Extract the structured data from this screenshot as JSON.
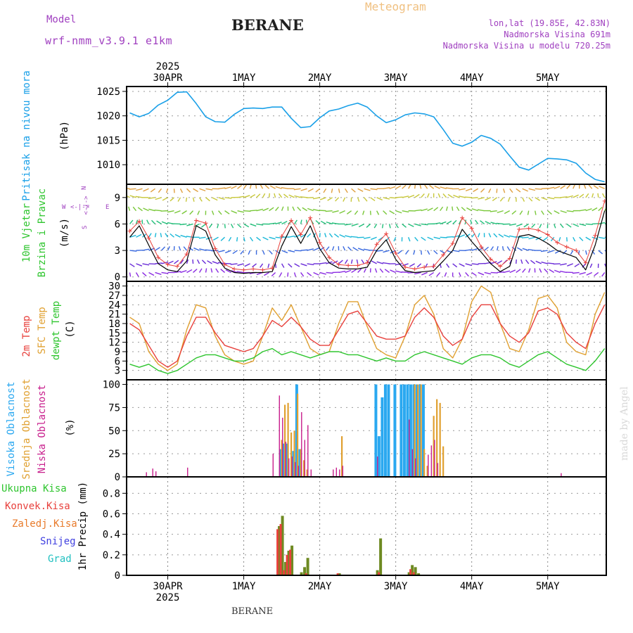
{
  "header": {
    "model_label": "Model",
    "model_name": "wrf-nmm_v3.9.1 e1km",
    "station": "BERANE",
    "title": "Meteogram",
    "lonlat": "lon,lat (19.85E, 42.83N)",
    "elevation": "Nadmorska Visina 691m",
    "model_elevation": "Nadmorska Visina u modelu 720.25m",
    "footer_station": "BERANE",
    "watermark": "made by Angel"
  },
  "colors": {
    "pressure": "#1aa0e8",
    "temp2m": "#e8403c",
    "sfc_temp": "#e0a030",
    "dewpt": "#2ec52e",
    "high_cloud": "#2aa8f0",
    "mid_cloud": "#e0a030",
    "low_cloud": "#c81e8c",
    "precip_total": "#2ec52e",
    "precip_conv": "#e8403c",
    "precip_grid": "#e87a2a",
    "snow": "#4040e0",
    "hail": "#20c0c0",
    "header_purple": "#a040c0",
    "title_orange": "#f0c080"
  },
  "time_axis": {
    "year_label": "2025",
    "day_labels": [
      "30APR",
      "1MAY",
      "2MAY",
      "3MAY",
      "4MAY",
      "5MAY"
    ]
  },
  "chart_data": [
    {
      "id": "pressure",
      "type": "line",
      "ylabel_left": "Pritisak na nivou mora",
      "unit": "(hPa)",
      "ylim": [
        1006,
        1026
      ],
      "yticks": [
        "1025",
        "1020",
        "1015",
        "1010"
      ],
      "x_unit": "hours since 30APR 00:00",
      "x": [
        -12,
        -9,
        -6,
        -3,
        0,
        3,
        6,
        9,
        12,
        15,
        18,
        21,
        24,
        27,
        30,
        33,
        36,
        39,
        42,
        45,
        48,
        51,
        54,
        57,
        60,
        63,
        66,
        69,
        72,
        75,
        78,
        81,
        84,
        87,
        90,
        93,
        96,
        99,
        102,
        105,
        108,
        111,
        114,
        117,
        120,
        123,
        126,
        129,
        132,
        135,
        138
      ],
      "values": [
        1020.6,
        1019.8,
        1020.5,
        1022.2,
        1023.2,
        1024.8,
        1024.9,
        1022.5,
        1019.8,
        1018.8,
        1018.7,
        1020.3,
        1021.5,
        1021.6,
        1021.5,
        1021.8,
        1021.8,
        1019.5,
        1017.6,
        1017.8,
        1019.6,
        1021.0,
        1021.4,
        1022.1,
        1022.6,
        1021.8,
        1020.0,
        1018.6,
        1019.2,
        1020.2,
        1020.6,
        1020.4,
        1019.8,
        1017.2,
        1014.4,
        1013.8,
        1014.6,
        1016.0,
        1015.4,
        1014.2,
        1011.8,
        1009.5,
        1008.9,
        1010.1,
        1011.3,
        1011.2,
        1011.0,
        1010.3,
        1008.3,
        1007.0,
        1006.5
      ]
    },
    {
      "id": "wind",
      "type": "line",
      "ylabel_left": "10m Vjetar",
      "ylabel_left2": "Brzina i Pravac",
      "unit": "(m/s)",
      "compass": {
        "north": "N",
        "south": "S",
        "east": "E",
        "west": "W",
        "arrows": "<-|->"
      },
      "ylim": [
        -0.5,
        10.5
      ],
      "yticks": [
        "9",
        "6",
        "3",
        "0"
      ],
      "isotach_levels_ms": [
        0.5,
        1.5,
        3,
        4.5,
        6,
        7.5,
        9,
        10
      ],
      "isotach_colors": [
        "#8a2be2",
        "#6a2cd8",
        "#3a6ae0",
        "#1ab8d8",
        "#22c07a",
        "#7ac83a",
        "#c8c83a",
        "#e0a040"
      ],
      "x_unit": "hours since 30APR 00:00",
      "x": [
        -12,
        -9,
        -6,
        -3,
        0,
        3,
        6,
        9,
        12,
        15,
        18,
        21,
        24,
        27,
        30,
        33,
        36,
        39,
        42,
        45,
        48,
        51,
        54,
        57,
        60,
        63,
        66,
        69,
        72,
        75,
        78,
        81,
        84,
        87,
        90,
        93,
        96,
        99,
        102,
        105,
        108,
        111,
        114,
        117,
        120,
        123,
        126,
        129,
        132,
        135,
        138
      ],
      "speed": [
        4.5,
        5.8,
        3.6,
        1.5,
        0.8,
        0.6,
        1.8,
        5.8,
        5.2,
        2.5,
        1.0,
        0.5,
        0.4,
        0.5,
        0.5,
        0.6,
        3.5,
        5.7,
        3.8,
        5.8,
        3.2,
        1.6,
        1.0,
        0.9,
        0.9,
        1.1,
        3.0,
        4.2,
        2.0,
        0.7,
        0.5,
        0.6,
        0.7,
        1.8,
        3.0,
        5.4,
        4.0,
        2.8,
        1.5,
        0.6,
        1.2,
        4.6,
        4.8,
        4.4,
        3.8,
        3.0,
        2.6,
        2.2,
        0.8,
        3.6,
        7.5
      ],
      "speed_markers": [
        5.2,
        6.3,
        4.4,
        2.2,
        1.4,
        1.2,
        2.6,
        6.4,
        6.1,
        3.2,
        1.4,
        0.9,
        0.8,
        0.9,
        0.8,
        1.0,
        4.6,
        6.4,
        4.8,
        6.7,
        3.9,
        2.2,
        1.4,
        1.3,
        1.3,
        1.6,
        3.7,
        4.9,
        2.7,
        1.1,
        0.9,
        1.1,
        1.2,
        2.5,
        3.8,
        6.7,
        5.5,
        3.4,
        2.0,
        1.2,
        2.1,
        5.4,
        5.5,
        5.3,
        4.8,
        3.9,
        3.4,
        3.0,
        1.6,
        4.7,
        8.6
      ]
    },
    {
      "id": "temperature",
      "type": "line",
      "ylabel_left": "2m Temp",
      "ylabel_left2": "SFC Temp",
      "ylabel_left3": "dewpt Temp",
      "unit": "(C)",
      "ylim": [
        0,
        31.5
      ],
      "yticks": [
        "30",
        "27",
        "24",
        "21",
        "18",
        "15",
        "12",
        "9",
        "6",
        "3"
      ],
      "x_unit": "hours since 30APR 00:00",
      "x": [
        -12,
        -9,
        -6,
        -3,
        0,
        3,
        6,
        9,
        12,
        15,
        18,
        21,
        24,
        27,
        30,
        33,
        36,
        39,
        42,
        45,
        48,
        51,
        54,
        57,
        60,
        63,
        66,
        69,
        72,
        75,
        78,
        81,
        84,
        87,
        90,
        93,
        96,
        99,
        102,
        105,
        108,
        111,
        114,
        117,
        120,
        123,
        126,
        129,
        132,
        135,
        138
      ],
      "series": [
        {
          "key": "sfc",
          "values": [
            20,
            18,
            9,
            5,
            3,
            5,
            16,
            24,
            23,
            14,
            8,
            6,
            5,
            6,
            14,
            23,
            19,
            24,
            17,
            10,
            8,
            9,
            18,
            25,
            25,
            17,
            10,
            8,
            7,
            14,
            24,
            27,
            21,
            10,
            7,
            13,
            25,
            30,
            28,
            18,
            10,
            9,
            16,
            26,
            27,
            23,
            12,
            9,
            8,
            21,
            28
          ]
        },
        {
          "key": "t2m",
          "values": [
            18,
            16,
            11,
            6,
            4,
            6,
            14,
            20,
            20,
            15,
            11,
            10,
            9,
            10,
            14,
            19,
            17,
            20,
            17,
            13,
            11,
            11,
            16,
            21,
            22,
            18,
            14,
            13,
            13,
            14,
            20,
            23,
            20,
            14,
            11,
            13,
            20,
            24,
            24,
            18,
            14,
            12,
            15,
            22,
            23,
            21,
            15,
            12,
            10,
            18,
            24
          ]
        },
        {
          "key": "dewpt",
          "values": [
            5,
            4,
            5,
            3,
            2,
            3,
            5,
            7,
            8,
            8,
            7,
            6,
            6,
            7,
            9,
            10,
            8,
            9,
            8,
            7,
            8,
            9,
            9,
            8,
            8,
            7,
            6,
            7,
            6,
            6,
            8,
            9,
            8,
            7,
            6,
            5,
            7,
            8,
            8,
            7,
            5,
            4,
            6,
            8,
            9,
            7,
            5,
            4,
            3,
            6,
            10
          ]
        }
      ]
    },
    {
      "id": "cloud",
      "type": "bar",
      "ylabel_left": "Visoka Oblacnost",
      "ylabel_left2": "Srednja Oblacnost",
      "ylabel_left3": "Niska Oblacnost",
      "unit": "(%)",
      "ylim": [
        0,
        105
      ],
      "yticks": [
        "100",
        "75",
        "50",
        "25",
        "0"
      ],
      "x_unit": "hours since 30APR 00:00",
      "series": [
        {
          "key": "high",
          "x": [
            36,
            37,
            38,
            40,
            41,
            42,
            66,
            67,
            68,
            69,
            70,
            72,
            74,
            75,
            76,
            77,
            78,
            79,
            80,
            81
          ],
          "values": [
            30,
            36,
            36,
            28,
            100,
            30,
            100,
            44,
            86,
            100,
            100,
            100,
            100,
            100,
            100,
            100,
            100,
            100,
            100,
            100
          ]
        },
        {
          "key": "mid",
          "x": [
            36,
            37,
            38,
            39,
            40,
            41,
            42,
            43,
            44,
            55,
            78,
            79,
            80,
            81,
            82,
            84,
            85,
            86,
            87
          ],
          "values": [
            40,
            78,
            80,
            48,
            50,
            90,
            30,
            18,
            8,
            44,
            100,
            100,
            100,
            30,
            12,
            66,
            84,
            80,
            33
          ]
        },
        {
          "key": "low",
          "x": [
            -7,
            -5,
            -4,
            6,
            33,
            35,
            36,
            37,
            38,
            39,
            40,
            41,
            42,
            43,
            44,
            45,
            52,
            53,
            54,
            55,
            66,
            76,
            77,
            78,
            82,
            83,
            84,
            85,
            124
          ],
          "values": [
            5,
            9,
            6,
            10,
            25,
            88,
            64,
            38,
            20,
            22,
            16,
            12,
            70,
            40,
            56,
            8,
            8,
            10,
            8,
            12,
            22,
            62,
            30,
            20,
            24,
            34,
            40,
            15,
            4
          ]
        }
      ]
    },
    {
      "id": "precip",
      "type": "bar",
      "ylabel_left": "1hr Precip",
      "unit": "(mm)",
      "legend": [
        "Ukupna Kisa",
        "Konvek.Kisa",
        "Zaledj.Kisa",
        "Snijeg",
        "Grad"
      ],
      "ylim": [
        0,
        0.96
      ],
      "yticks": [
        "0.8",
        "0.6",
        "0.4",
        "0.2",
        "0"
      ],
      "x_unit": "hours since 30APR 00:00",
      "total": {
        "x": [
          35,
          36,
          37,
          38,
          39,
          42,
          43,
          44,
          54,
          66,
          67,
          76,
          77,
          78,
          79
        ],
        "values": [
          0.48,
          0.58,
          0.13,
          0.24,
          0.29,
          0.03,
          0.08,
          0.17,
          0.02,
          0.05,
          0.36,
          0.03,
          0.1,
          0.08,
          0.02
        ]
      },
      "convective": {
        "x": [
          35,
          36,
          37,
          38,
          39,
          44,
          54,
          67,
          77,
          78
        ],
        "values": [
          0.45,
          0.5,
          0.05,
          0.2,
          0.25,
          0.02,
          0.02,
          0.03,
          0.06,
          0.03
        ]
      }
    }
  ]
}
